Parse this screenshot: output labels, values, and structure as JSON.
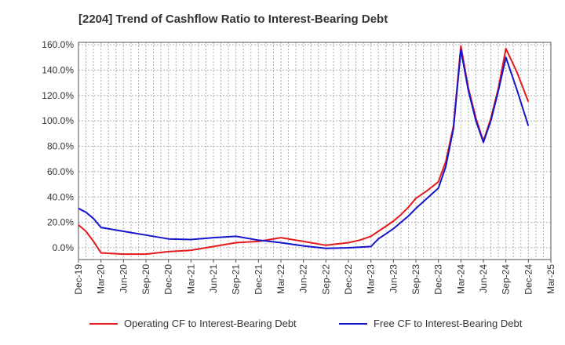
{
  "chart_data": {
    "type": "line",
    "title": "[2204]  Trend of Cashflow Ratio to Interest-Bearing Debt",
    "xlabel": "",
    "ylabel": "",
    "ylim": [
      -10,
      160
    ],
    "yticks": [
      "160.0%",
      "140.0%",
      "120.0%",
      "100.0%",
      "80.0%",
      "60.0%",
      "40.0%",
      "20.0%",
      "0.0%"
    ],
    "yticks_values": [
      160,
      140,
      120,
      100,
      80,
      60,
      40,
      20,
      0
    ],
    "xticks": [
      "Dec-19",
      "Mar-20",
      "Jun-20",
      "Sep-20",
      "Dec-20",
      "Mar-21",
      "Jun-21",
      "Sep-21",
      "Dec-21",
      "Mar-22",
      "Jun-22",
      "Sep-22",
      "Dec-22",
      "Mar-23",
      "Jun-23",
      "Sep-23",
      "Dec-23",
      "Mar-24",
      "Jun-24",
      "Sep-24",
      "Dec-24",
      "Mar-25"
    ],
    "grid": true,
    "legend_position": "bottom",
    "series": [
      {
        "name": "Operating CF to Interest-Bearing Debt",
        "color": "#e31a1c",
        "points": [
          [
            0,
            18
          ],
          [
            0.33,
            13
          ],
          [
            0.67,
            5
          ],
          [
            1,
            -4
          ],
          [
            2,
            -5
          ],
          [
            3,
            -5
          ],
          [
            4,
            -3
          ],
          [
            5,
            -2
          ],
          [
            6,
            1
          ],
          [
            7,
            4
          ],
          [
            8,
            5
          ],
          [
            9,
            8
          ],
          [
            10,
            5
          ],
          [
            11,
            2
          ],
          [
            12,
            4
          ],
          [
            12.5,
            6
          ],
          [
            13,
            9
          ],
          [
            13.33,
            13
          ],
          [
            13.67,
            17
          ],
          [
            14,
            21
          ],
          [
            14.33,
            26
          ],
          [
            14.67,
            32
          ],
          [
            15,
            39
          ],
          [
            15.5,
            45
          ],
          [
            16,
            52
          ],
          [
            16.33,
            68
          ],
          [
            16.67,
            96
          ],
          [
            17,
            159
          ],
          [
            17.33,
            126
          ],
          [
            17.67,
            102
          ],
          [
            18,
            84
          ],
          [
            18.33,
            102
          ],
          [
            18.67,
            126
          ],
          [
            19,
            157
          ],
          [
            19.5,
            138
          ],
          [
            20,
            115
          ]
        ]
      },
      {
        "name": "Free CF to Interest-Bearing Debt",
        "color": "#1515cc",
        "points": [
          [
            0,
            31
          ],
          [
            0.33,
            28
          ],
          [
            0.67,
            23
          ],
          [
            1,
            16
          ],
          [
            2,
            13
          ],
          [
            3,
            10
          ],
          [
            4,
            7
          ],
          [
            5,
            6.5
          ],
          [
            6,
            8
          ],
          [
            7,
            9
          ],
          [
            8,
            6
          ],
          [
            9,
            4
          ],
          [
            10,
            1.5
          ],
          [
            11,
            -0.5
          ],
          [
            12,
            0
          ],
          [
            12.5,
            0.5
          ],
          [
            13,
            1
          ],
          [
            13.33,
            7
          ],
          [
            13.67,
            11
          ],
          [
            14,
            15
          ],
          [
            14.33,
            20
          ],
          [
            14.67,
            25
          ],
          [
            15,
            31
          ],
          [
            15.5,
            39
          ],
          [
            16,
            47
          ],
          [
            16.33,
            64
          ],
          [
            16.67,
            94
          ],
          [
            17,
            156
          ],
          [
            17.33,
            124
          ],
          [
            17.67,
            100
          ],
          [
            18,
            83
          ],
          [
            18.33,
            100
          ],
          [
            18.67,
            124
          ],
          [
            19,
            150
          ],
          [
            19.5,
            124
          ],
          [
            20,
            96
          ]
        ]
      }
    ]
  }
}
